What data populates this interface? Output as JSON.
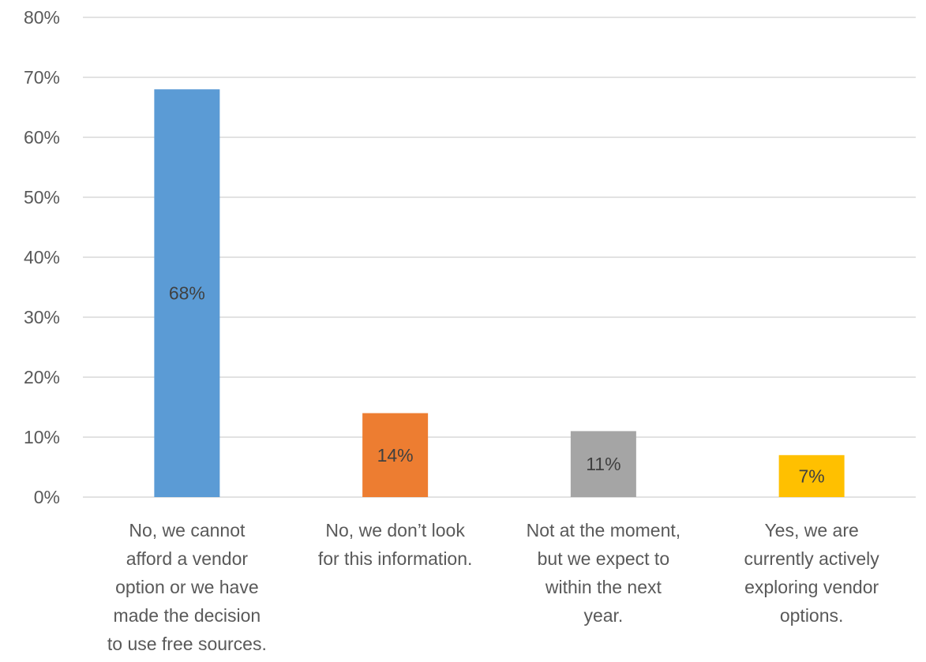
{
  "chart_data": {
    "type": "bar",
    "title": "",
    "xlabel": "",
    "ylabel": "",
    "ylim": [
      0,
      80
    ],
    "yticks": [
      0,
      10,
      20,
      30,
      40,
      50,
      60,
      70,
      80
    ],
    "ytick_format": "percent",
    "grid": true,
    "legend": "none",
    "categories": [
      [
        "No, we cannot",
        "afford a vendor",
        "option or we have",
        "made the decision",
        "to use free sources."
      ],
      [
        "No, we don’t look",
        "for this information."
      ],
      [
        "Not at the moment,",
        "but we expect to",
        "within the next",
        "year."
      ],
      [
        "Yes, we are",
        "currently actively",
        "exploring vendor",
        "options."
      ]
    ],
    "values": [
      68,
      14,
      11,
      7
    ],
    "data_labels": [
      "68%",
      "14%",
      "11%",
      "7%"
    ],
    "colors": [
      "#5b9bd5",
      "#ed7d31",
      "#a5a5a5",
      "#ffc000"
    ],
    "gridline_color": "#d9d9d9"
  }
}
